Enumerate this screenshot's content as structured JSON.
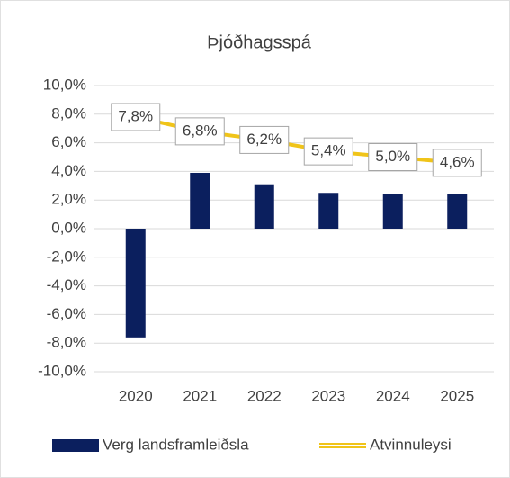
{
  "chart_data": {
    "type": "bar",
    "title": "Þjóðhagsspá",
    "categories": [
      "2020",
      "2021",
      "2022",
      "2023",
      "2024",
      "2025"
    ],
    "series": [
      {
        "name": "Verg landsframleiðsla",
        "type": "bar",
        "color": "#0b1f5e",
        "values": [
          -7.6,
          3.9,
          3.1,
          2.5,
          2.4,
          2.4
        ]
      },
      {
        "name": "Atvinnuleysi",
        "type": "line",
        "color": "#f0c419",
        "values": [
          7.8,
          6.8,
          6.2,
          5.4,
          5.0,
          4.6
        ],
        "value_labels": [
          "7,8%",
          "6,8%",
          "6,2%",
          "5,4%",
          "5,0%",
          "4,6%"
        ]
      }
    ],
    "ylim": [
      -10,
      10
    ],
    "yticks": [
      {
        "value": -10,
        "label": "-10,0%"
      },
      {
        "value": -8,
        "label": "-8,0%"
      },
      {
        "value": -6,
        "label": "-6,0%"
      },
      {
        "value": -4,
        "label": "-4,0%"
      },
      {
        "value": -2,
        "label": "-2,0%"
      },
      {
        "value": 0,
        "label": "0,0%"
      },
      {
        "value": 2,
        "label": "2,0%"
      },
      {
        "value": 4,
        "label": "4,0%"
      },
      {
        "value": 6,
        "label": "6,0%"
      },
      {
        "value": 8,
        "label": "8,0%"
      },
      {
        "value": 10,
        "label": "10,0%"
      }
    ],
    "grid": true,
    "legend": "bottom"
  }
}
